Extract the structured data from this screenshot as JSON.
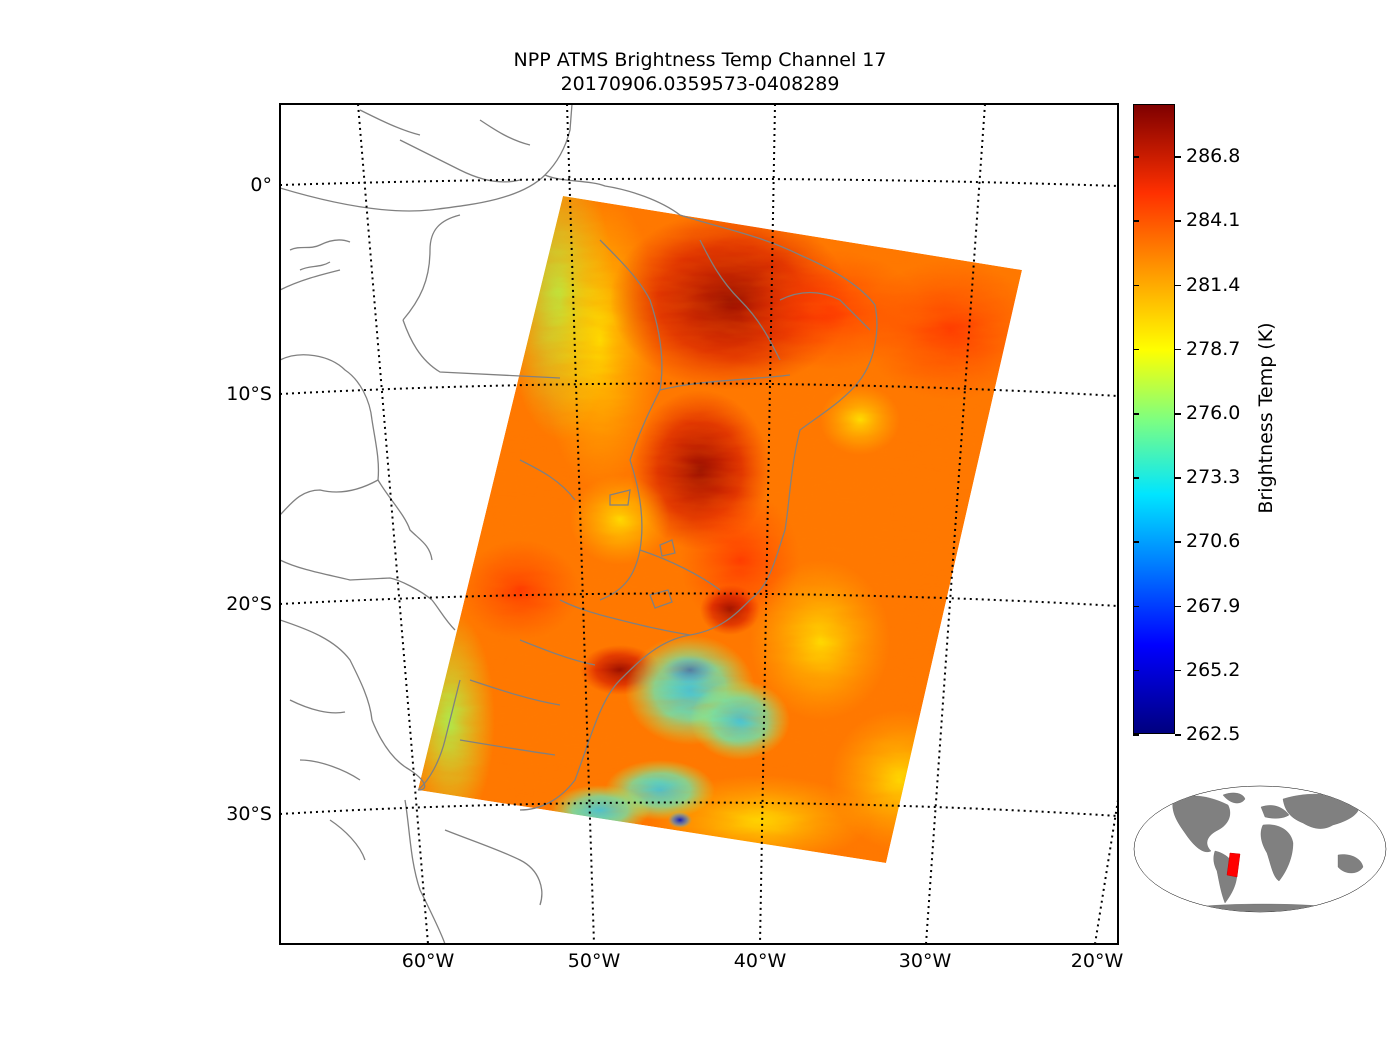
{
  "title": {
    "line1": "NPP ATMS Brightness Temp Channel 17",
    "line2": "20170906.0359573-0408289"
  },
  "map": {
    "lat_labels": [
      "0°",
      "10°S",
      "20°S",
      "30°S"
    ],
    "lon_labels": [
      "60°W",
      "50°W",
      "40°W",
      "30°W",
      "20°W"
    ],
    "graticule_style": "dotted black",
    "coastline_color": "#808080",
    "country_border_color": "#808080",
    "swath_description": "ATMS scan swath over eastern Brazil and adjacent South Atlantic"
  },
  "colorbar": {
    "label": "Brightness Temp (K)",
    "ticks": [
      "262.5",
      "265.2",
      "267.9",
      "270.6",
      "273.3",
      "276.0",
      "278.7",
      "281.4",
      "284.1",
      "286.8"
    ],
    "min": 262.5,
    "max": 289.0,
    "colormap": "jet"
  },
  "inset": {
    "land_color": "#808080",
    "footprint_color": "#ff0000"
  }
}
